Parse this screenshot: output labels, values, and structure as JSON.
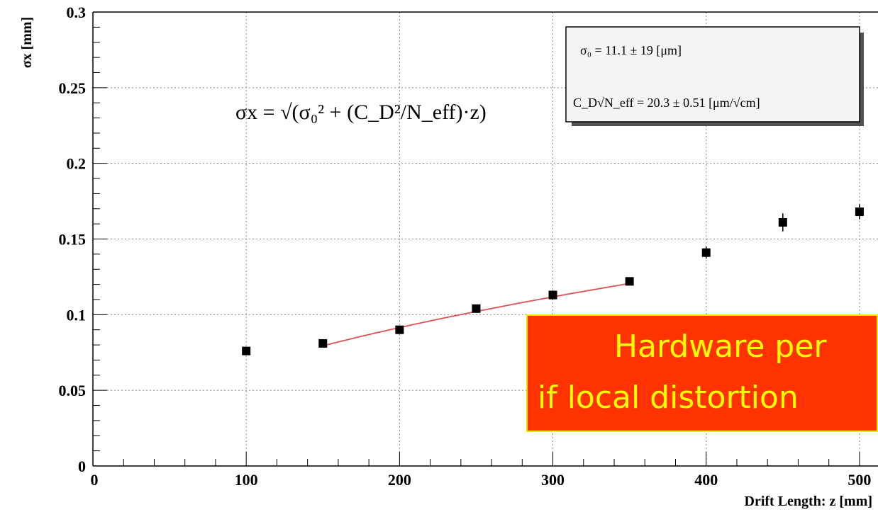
{
  "chart_data": {
    "type": "scatter",
    "xlabel": "Drift Length: z [mm]",
    "ylabel": "σx [mm]",
    "xlim": [
      0,
      550
    ],
    "ylim": [
      0,
      0.3
    ],
    "x_ticks": [
      0,
      100,
      200,
      300,
      400,
      500
    ],
    "x_tick_labels": [
      "0",
      "100",
      "200",
      "300",
      "400",
      "500"
    ],
    "y_ticks": [
      0,
      0.05,
      0.1,
      0.15,
      0.2,
      0.25,
      0.3
    ],
    "y_tick_labels": [
      "0",
      "0.05",
      "0.1",
      "0.15",
      "0.2",
      "0.25",
      "0.3"
    ],
    "grid": true,
    "points": [
      {
        "x": 100,
        "y": 0.076,
        "err": 0.002
      },
      {
        "x": 150,
        "y": 0.081,
        "err": 0.002
      },
      {
        "x": 200,
        "y": 0.09,
        "err": 0.002
      },
      {
        "x": 250,
        "y": 0.104,
        "err": 0.002
      },
      {
        "x": 300,
        "y": 0.113,
        "err": 0.003
      },
      {
        "x": 350,
        "y": 0.122,
        "err": 0.002
      },
      {
        "x": 400,
        "y": 0.141,
        "err": 0.004
      },
      {
        "x": 450,
        "y": 0.161,
        "err": 0.006
      },
      {
        "x": 500,
        "y": 0.168,
        "err": 0.005
      }
    ],
    "fit": {
      "color": "#e05050",
      "x_range": [
        150,
        350
      ],
      "sigma0_um": 11.1,
      "cd_sqrt_neff_um_per_sqrtcm": 20.3
    },
    "stats_box": {
      "line1": "σ₀ =   11.1 ±   19 [μm]",
      "line2": "C_D√N_eff =   20.3 ± 0.51 [μm/√cm]"
    },
    "formula": "σx = √(σ₀² + (C_D²/N_eff)·z)"
  },
  "banner": {
    "line1": "Hardware per",
    "line2": "if local distortion",
    "background": "#ff3300",
    "text_color": "#ffff00"
  }
}
